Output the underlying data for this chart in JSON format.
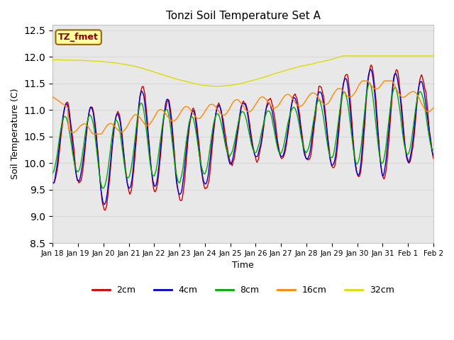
{
  "title": "Tonzi Soil Temperature Set A",
  "xlabel": "Time",
  "ylabel": "Soil Temperature (C)",
  "ylim": [
    8.5,
    12.6
  ],
  "annotation": "TZ_fmet",
  "annotation_color": "#8B0000",
  "annotation_bg": "#FFFFA0",
  "annotation_border": "#996600",
  "x_tick_labels": [
    "Jan 18",
    "Jan 19",
    "Jan 20",
    "Jan 21",
    "Jan 22",
    "Jan 23",
    "Jan 24",
    "Jan 25",
    "Jan 26",
    "Jan 27",
    "Jan 28",
    "Jan 29",
    "Jan 30",
    "Jan 31",
    "Feb 1",
    "Feb 2"
  ],
  "series_colors": {
    "2cm": "#CC0000",
    "4cm": "#0000CC",
    "8cm": "#00AA00",
    "16cm": "#FF8800",
    "32cm": "#DDDD00"
  },
  "grid_color": "#d8d8d8",
  "bg_color": "#e8e8e8",
  "legend_labels": [
    "2cm",
    "4cm",
    "8cm",
    "16cm",
    "32cm"
  ]
}
